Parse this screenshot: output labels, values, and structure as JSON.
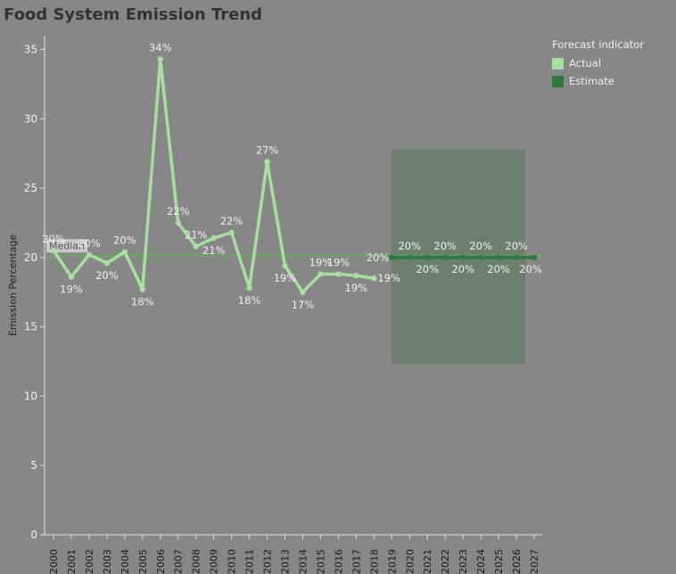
{
  "title": "Food System Emission Trend",
  "legend": {
    "title": "Forecast indicator",
    "items": [
      {
        "label": "Actual",
        "color": "#a8dea0"
      },
      {
        "label": "Estimate",
        "color": "#2d7a3e"
      }
    ]
  },
  "colors": {
    "actual": "#a8dea0",
    "estimate": "#2d7a3e",
    "median_line": "#6aa861",
    "forecast_band": "#6b7f6e",
    "background": "#878787"
  },
  "chart_data": {
    "type": "line",
    "title": "Food System Emission Trend",
    "xlabel": "",
    "ylabel": "Emission Percentage",
    "ylim": [
      0,
      36
    ],
    "yticks": [
      0,
      5,
      10,
      15,
      20,
      25,
      30,
      35
    ],
    "x": [
      "2000",
      "2001",
      "2002",
      "2003",
      "2004",
      "2005",
      "2006",
      "2007",
      "2008",
      "2009",
      "2010",
      "2011",
      "2012",
      "2013",
      "2014",
      "2015",
      "2016",
      "2017",
      "2018",
      "2019",
      "2020",
      "2021",
      "2022",
      "2023",
      "2024",
      "2025",
      "2026",
      "2027"
    ],
    "series": [
      {
        "name": "Actual",
        "x": [
          "2000",
          "2001",
          "2002",
          "2003",
          "2004",
          "2005",
          "2006",
          "2007",
          "2008",
          "2009",
          "2010",
          "2011",
          "2012",
          "2013",
          "2014",
          "2015",
          "2016",
          "2017",
          "2018"
        ],
        "values": [
          20.5,
          18.6,
          20.2,
          19.6,
          20.4,
          17.7,
          34.3,
          22.5,
          20.8,
          21.4,
          21.8,
          17.8,
          26.9,
          19.4,
          17.5,
          18.8,
          18.8,
          18.7,
          18.5
        ],
        "labels": [
          "20%",
          "19%",
          "20%",
          "20%",
          "20%",
          "18%",
          "34%",
          "22%",
          "21%",
          "21%",
          "22%",
          "18%",
          "27%",
          "19%",
          "17%",
          "19%",
          "19%",
          "19%",
          "19%"
        ]
      },
      {
        "name": "Estimate",
        "x": [
          "2019",
          "2020",
          "2021",
          "2022",
          "2023",
          "2024",
          "2025",
          "2026",
          "2027"
        ],
        "values": [
          20,
          20,
          20,
          20,
          20,
          20,
          20,
          20,
          20
        ],
        "labels": [
          "20%",
          "20%",
          "20%",
          "20%",
          "20%",
          "20%",
          "20%",
          "20%",
          "20%"
        ]
      }
    ],
    "reference_line": {
      "label": "Median",
      "value": 20.1
    },
    "forecast_band": {
      "from": "2019",
      "to": "2026",
      "ymin": 12.3,
      "ymax": 27.8
    },
    "legend_position": "top-right",
    "grid": false
  }
}
